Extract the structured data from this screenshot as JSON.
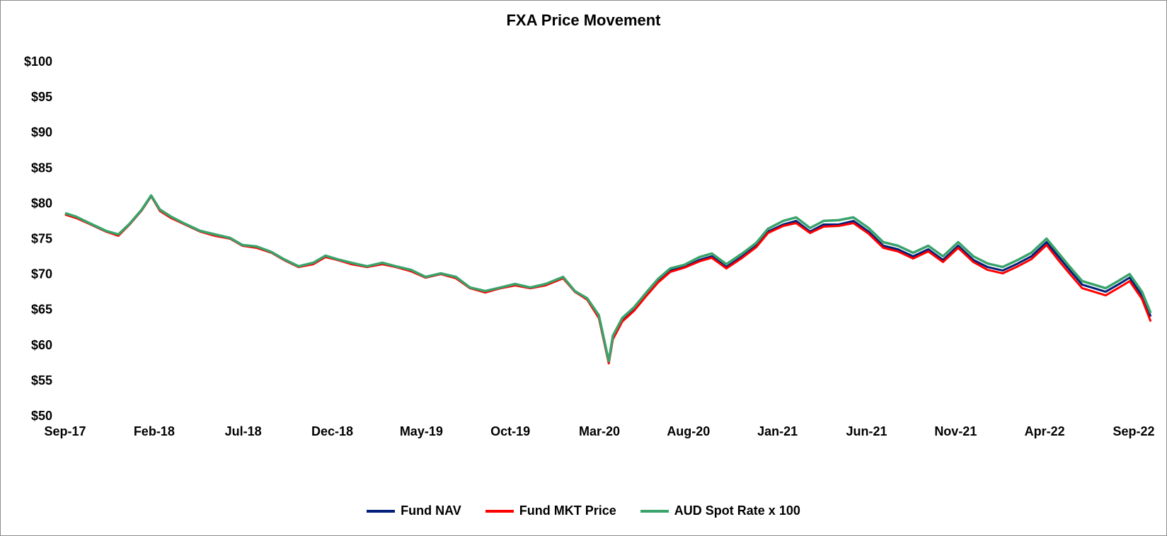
{
  "chart_data": {
    "type": "line",
    "title": "FXA Price Movement",
    "xlabel": "",
    "ylabel": "",
    "ylim": [
      50,
      100
    ],
    "y_ticks": [
      "$50",
      "$55",
      "$60",
      "$65",
      "$70",
      "$75",
      "$80",
      "$85",
      "$90",
      "$95",
      "$100"
    ],
    "x_range": [
      "2017-09",
      "2022-09"
    ],
    "x_ticks": [
      "Sep-17",
      "Feb-18",
      "Jul-18",
      "Dec-18",
      "May-19",
      "Oct-19",
      "Mar-20",
      "Aug-20",
      "Jan-21",
      "Jun-21",
      "Nov-21",
      "Apr-22",
      "Sep-22"
    ],
    "grid": false,
    "legend_position": "bottom",
    "dates": [
      "2017-09-01",
      "2017-09-20",
      "2017-10-15",
      "2017-11-10",
      "2017-12-01",
      "2017-12-20",
      "2018-01-10",
      "2018-01-26",
      "2018-02-10",
      "2018-03-01",
      "2018-03-25",
      "2018-04-20",
      "2018-05-15",
      "2018-06-10",
      "2018-07-01",
      "2018-07-25",
      "2018-08-20",
      "2018-09-10",
      "2018-10-05",
      "2018-10-30",
      "2018-11-20",
      "2018-12-10",
      "2019-01-03",
      "2019-01-30",
      "2019-02-25",
      "2019-03-20",
      "2019-04-15",
      "2019-05-10",
      "2019-06-05",
      "2019-07-01",
      "2019-07-25",
      "2019-08-20",
      "2019-09-15",
      "2019-10-10",
      "2019-11-05",
      "2019-12-01",
      "2019-12-31",
      "2020-01-20",
      "2020-02-10",
      "2020-03-01",
      "2020-03-18",
      "2020-03-25",
      "2020-04-10",
      "2020-04-30",
      "2020-05-20",
      "2020-06-10",
      "2020-07-01",
      "2020-07-25",
      "2020-08-20",
      "2020-09-10",
      "2020-10-05",
      "2020-11-01",
      "2020-11-25",
      "2020-12-15",
      "2021-01-10",
      "2021-02-01",
      "2021-02-25",
      "2021-03-20",
      "2021-04-15",
      "2021-05-10",
      "2021-06-05",
      "2021-06-30",
      "2021-07-25",
      "2021-08-20",
      "2021-09-15",
      "2021-10-10",
      "2021-11-05",
      "2021-12-01",
      "2021-12-25",
      "2022-01-20",
      "2022-02-15",
      "2022-03-10",
      "2022-04-05",
      "2022-04-25",
      "2022-05-15",
      "2022-06-05",
      "2022-06-25",
      "2022-07-15",
      "2022-08-05",
      "2022-08-25",
      "2022-09-15",
      "2022-09-30"
    ],
    "series": [
      {
        "name": "Fund NAV",
        "color": "#001f7a",
        "values": [
          78.5,
          78.0,
          77.0,
          76.0,
          75.5,
          77.0,
          79.0,
          81.0,
          79.0,
          78.0,
          77.0,
          76.0,
          75.5,
          75.0,
          74.0,
          73.8,
          73.0,
          72.0,
          71.0,
          71.5,
          72.5,
          72.0,
          71.5,
          71.0,
          71.5,
          71.0,
          70.5,
          69.5,
          70.0,
          69.5,
          68.0,
          67.5,
          68.0,
          68.5,
          68.0,
          68.5,
          69.5,
          67.5,
          66.5,
          64.0,
          57.5,
          61.0,
          63.5,
          65.0,
          67.0,
          69.0,
          70.5,
          71.0,
          72.0,
          72.5,
          71.0,
          72.5,
          74.0,
          76.0,
          77.0,
          77.5,
          76.0,
          77.0,
          77.0,
          77.5,
          76.0,
          74.0,
          73.5,
          72.5,
          73.5,
          72.0,
          74.0,
          72.0,
          71.0,
          70.5,
          71.5,
          72.5,
          74.5,
          72.5,
          70.5,
          68.5,
          68.0,
          67.5,
          68.5,
          69.5,
          67.0,
          64.0
        ]
      },
      {
        "name": "Fund MKT Price",
        "color": "#ff0000",
        "values": [
          78.4,
          77.9,
          77.0,
          76.0,
          75.4,
          77.0,
          79.0,
          81.0,
          78.9,
          77.9,
          77.0,
          76.0,
          75.4,
          75.0,
          74.0,
          73.7,
          73.0,
          72.0,
          71.0,
          71.4,
          72.4,
          72.0,
          71.4,
          71.0,
          71.4,
          71.0,
          70.4,
          69.5,
          70.0,
          69.4,
          68.0,
          67.4,
          68.0,
          68.4,
          68.0,
          68.4,
          69.4,
          67.5,
          66.4,
          63.8,
          57.4,
          60.8,
          63.3,
          64.8,
          66.8,
          68.8,
          70.3,
          70.9,
          71.8,
          72.3,
          70.8,
          72.3,
          73.8,
          75.8,
          76.8,
          77.2,
          75.8,
          76.7,
          76.8,
          77.2,
          75.7,
          73.7,
          73.2,
          72.2,
          73.2,
          71.7,
          73.7,
          71.7,
          70.6,
          70.1,
          71.1,
          72.1,
          74.1,
          72.0,
          70.0,
          68.0,
          67.5,
          67.0,
          68.0,
          69.0,
          66.5,
          63.3
        ]
      },
      {
        "name": "AUD Spot Rate x 100",
        "color": "#3aa36b",
        "values": [
          78.6,
          78.1,
          77.1,
          76.1,
          75.6,
          77.1,
          79.1,
          81.1,
          79.1,
          78.1,
          77.1,
          76.1,
          75.6,
          75.1,
          74.1,
          73.9,
          73.1,
          72.1,
          71.1,
          71.6,
          72.6,
          72.1,
          71.6,
          71.1,
          71.6,
          71.1,
          70.6,
          69.6,
          70.1,
          69.6,
          68.1,
          67.6,
          68.1,
          68.6,
          68.1,
          68.6,
          69.6,
          67.6,
          66.6,
          64.2,
          57.7,
          61.3,
          63.8,
          65.3,
          67.3,
          69.3,
          70.8,
          71.3,
          72.4,
          72.9,
          71.4,
          72.9,
          74.4,
          76.4,
          77.5,
          78.0,
          76.5,
          77.5,
          77.6,
          78.0,
          76.5,
          74.5,
          74.0,
          73.0,
          74.0,
          72.5,
          74.5,
          72.5,
          71.5,
          71.0,
          72.0,
          73.0,
          75.0,
          73.0,
          71.0,
          69.0,
          68.5,
          68.0,
          69.0,
          70.0,
          67.5,
          64.5
        ]
      }
    ]
  }
}
